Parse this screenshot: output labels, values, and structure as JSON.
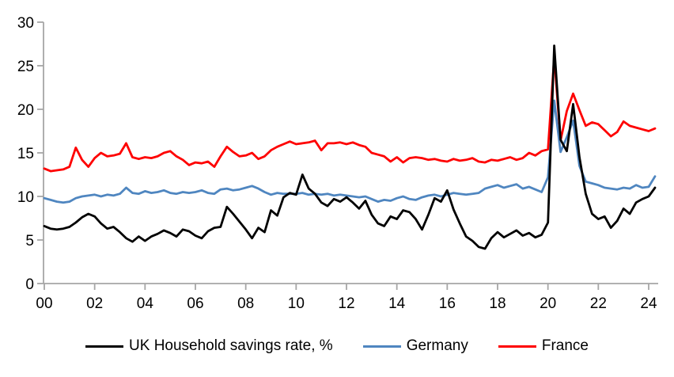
{
  "chart_data": {
    "type": "line",
    "title": "",
    "xlabel": "",
    "ylabel": "",
    "grid": "off",
    "legend_position": "bottom",
    "axis_color": "#a6a6a6",
    "x_start_year": 2000,
    "x_step_years": 0.25,
    "x_axis": {
      "tick_years": [
        2000,
        2002,
        2004,
        2006,
        2008,
        2010,
        2012,
        2014,
        2016,
        2018,
        2020,
        2022,
        2024
      ],
      "tick_labels": [
        "00",
        "02",
        "04",
        "06",
        "08",
        "10",
        "12",
        "14",
        "16",
        "18",
        "20",
        "22",
        "24"
      ]
    },
    "y_axis": {
      "min": 0,
      "max": 30,
      "ticks": [
        0,
        5,
        10,
        15,
        20,
        25,
        30
      ],
      "tick_labels": [
        "0",
        "5",
        "10",
        "15",
        "20",
        "25",
        "30"
      ]
    },
    "series": [
      {
        "name": "UK Household savings rate, %",
        "color": "#000000",
        "values": [
          6.6,
          6.3,
          6.2,
          6.3,
          6.5,
          7.0,
          7.6,
          8.0,
          7.7,
          6.9,
          6.3,
          6.5,
          5.9,
          5.2,
          4.8,
          5.4,
          4.9,
          5.4,
          5.7,
          6.1,
          5.8,
          5.4,
          6.2,
          6.0,
          5.5,
          5.2,
          6.0,
          6.4,
          6.5,
          8.8,
          8.0,
          7.1,
          6.2,
          5.2,
          6.4,
          5.9,
          8.4,
          7.8,
          9.9,
          10.4,
          10.2,
          12.5,
          10.9,
          10.3,
          9.3,
          8.9,
          9.7,
          9.4,
          9.9,
          9.3,
          8.6,
          9.5,
          7.9,
          6.9,
          6.6,
          7.7,
          7.4,
          8.4,
          8.2,
          7.4,
          6.2,
          7.9,
          9.8,
          9.4,
          10.7,
          8.5,
          6.9,
          5.4,
          4.9,
          4.2,
          4.0,
          5.2,
          5.9,
          5.3,
          5.7,
          6.1,
          5.5,
          5.8,
          5.3,
          5.6,
          7.0,
          27.3,
          16.5,
          15.2,
          20.6,
          14.5,
          10.3,
          8.0,
          7.4,
          7.7,
          6.4,
          7.2,
          8.6,
          8.0,
          9.3,
          9.7,
          10.0,
          11.0
        ]
      },
      {
        "name": "Germany",
        "color": "#4f86c0",
        "values": [
          9.8,
          9.6,
          9.4,
          9.3,
          9.4,
          9.8,
          10.0,
          10.1,
          10.2,
          10.0,
          10.2,
          10.1,
          10.3,
          11.0,
          10.4,
          10.3,
          10.6,
          10.4,
          10.5,
          10.7,
          10.4,
          10.3,
          10.5,
          10.4,
          10.5,
          10.7,
          10.4,
          10.3,
          10.8,
          10.9,
          10.7,
          10.8,
          11.0,
          11.2,
          10.9,
          10.5,
          10.2,
          10.4,
          10.3,
          10.3,
          10.3,
          10.4,
          10.2,
          10.3,
          10.2,
          10.3,
          10.1,
          10.2,
          10.1,
          10.0,
          9.9,
          10.0,
          9.7,
          9.4,
          9.6,
          9.5,
          9.8,
          10.0,
          9.7,
          9.6,
          9.9,
          10.1,
          10.2,
          10.0,
          10.2,
          10.4,
          10.3,
          10.2,
          10.3,
          10.4,
          10.9,
          11.1,
          11.3,
          11.0,
          11.2,
          11.4,
          10.9,
          11.1,
          10.8,
          10.5,
          12.2,
          21.0,
          15.1,
          16.8,
          18.7,
          13.5,
          11.7,
          11.5,
          11.3,
          11.0,
          10.9,
          10.8,
          11.0,
          10.9,
          11.3,
          11.0,
          11.1,
          12.3
        ]
      },
      {
        "name": "France",
        "color": "#fe0000",
        "values": [
          13.2,
          12.9,
          13.0,
          13.1,
          13.4,
          15.6,
          14.2,
          13.4,
          14.4,
          15.0,
          14.6,
          14.7,
          14.9,
          16.1,
          14.5,
          14.3,
          14.5,
          14.4,
          14.6,
          15.0,
          15.2,
          14.6,
          14.2,
          13.6,
          13.9,
          13.8,
          14.0,
          13.4,
          14.6,
          15.7,
          15.1,
          14.6,
          14.7,
          15.0,
          14.3,
          14.6,
          15.3,
          15.7,
          16.0,
          16.3,
          16.0,
          16.1,
          16.2,
          16.4,
          15.3,
          16.1,
          16.1,
          16.2,
          16.0,
          16.2,
          15.9,
          15.7,
          15.0,
          14.8,
          14.6,
          14.0,
          14.5,
          13.9,
          14.4,
          14.5,
          14.4,
          14.2,
          14.3,
          14.1,
          14.0,
          14.3,
          14.1,
          14.2,
          14.4,
          14.0,
          13.9,
          14.2,
          14.1,
          14.3,
          14.5,
          14.2,
          14.4,
          15.0,
          14.7,
          15.2,
          15.4,
          26.0,
          16.4,
          19.8,
          21.8,
          19.9,
          18.1,
          18.5,
          18.3,
          17.6,
          16.9,
          17.4,
          18.6,
          18.1,
          17.9,
          17.7,
          17.5,
          17.8
        ]
      }
    ]
  }
}
